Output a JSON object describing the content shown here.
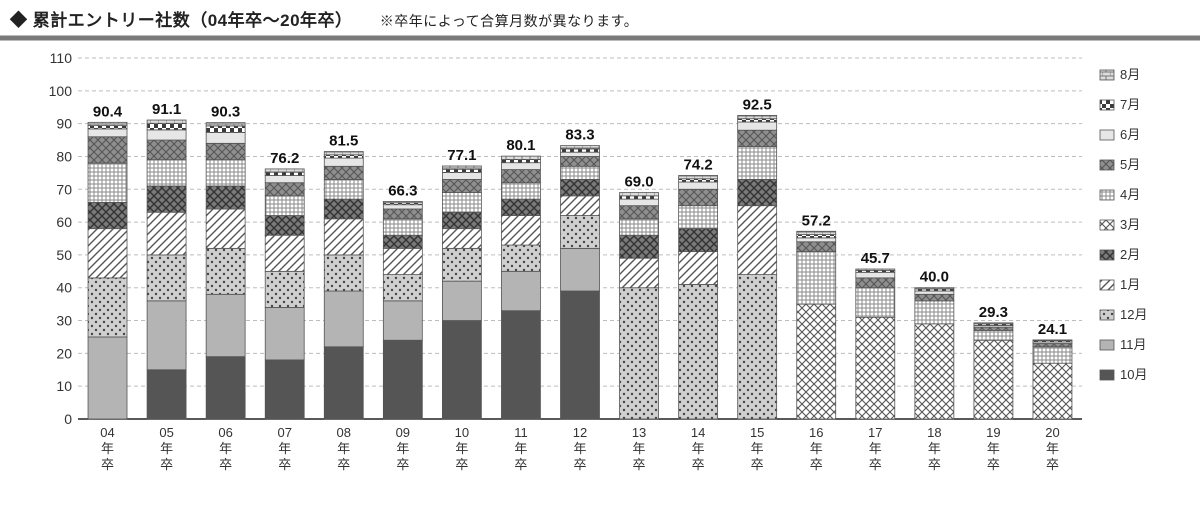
{
  "title": "◆ 累計エントリー社数（04年卒～20年卒）",
  "note": "※卒年によって合算月数が異なります。",
  "chart": {
    "type": "stacked-bar",
    "background_color": "#ffffff",
    "grid_color": "#bdbdbd",
    "axis_color": "#222222",
    "font_family": "Hiragino Kaku Gothic Pro, Meiryo, sans-serif",
    "title_fontsize": 17,
    "note_fontsize": 14,
    "axis_tick_fontsize": 14,
    "category_label_fontsize": 13,
    "data_label_fontsize": 15,
    "ylim": [
      0,
      110
    ],
    "ytick_step": 10,
    "bar_width_ratio": 0.66,
    "categories": [
      "04\n年\n卒",
      "05\n年\n卒",
      "06\n年\n卒",
      "07\n年\n卒",
      "08\n年\n卒",
      "09\n年\n卒",
      "10\n年\n卒",
      "11\n年\n卒",
      "12\n年\n卒",
      "13\n年\n卒",
      "14\n年\n卒",
      "15\n年\n卒",
      "16\n年\n卒",
      "17\n年\n卒",
      "18\n年\n卒",
      "19\n年\n卒",
      "20\n年\n卒"
    ],
    "totals": [
      90.4,
      91.1,
      90.3,
      76.2,
      81.5,
      66.3,
      77.1,
      80.1,
      83.3,
      69.0,
      74.2,
      92.5,
      57.2,
      45.7,
      40.0,
      29.3,
      24.1
    ],
    "legend_labels": [
      "8月",
      "7月",
      "6月",
      "5月",
      "4月",
      "3月",
      "2月",
      "1月",
      "12月",
      "11月",
      "10月"
    ],
    "legend_position": "right",
    "series_order_bottom_to_top": [
      "10月",
      "11月",
      "12月",
      "1月",
      "2月",
      "3月",
      "4月",
      "5月",
      "6月",
      "7月",
      "8月"
    ],
    "series_by_category": {
      "04年卒": {
        "10月": 0,
        "11月": 25,
        "12月": 18,
        "1月": 15,
        "2月": 8,
        "3月": 0,
        "4月": 12,
        "5月": 8,
        "6月": 2.4,
        "7月": 1,
        "8月": 1
      },
      "05年卒": {
        "10月": 15,
        "11月": 21,
        "12月": 14,
        "1月": 13,
        "2月": 8,
        "3月": 0,
        "4月": 8,
        "5月": 6,
        "6月": 3.1,
        "7月": 2,
        "8月": 1
      },
      "06年卒": {
        "10月": 19,
        "11月": 19,
        "12月": 14,
        "1月": 12,
        "2月": 7,
        "3月": 0,
        "4月": 8,
        "5月": 5,
        "6月": 3.3,
        "7月": 2,
        "8月": 1
      },
      "07年卒": {
        "10月": 18,
        "11月": 16,
        "12月": 11,
        "1月": 11,
        "2月": 6,
        "3月": 0,
        "4月": 6,
        "5月": 4,
        "6月": 2.2,
        "7月": 1,
        "8月": 1
      },
      "08年卒": {
        "10月": 22,
        "11月": 17,
        "12月": 11,
        "1月": 11,
        "2月": 6,
        "3月": 0,
        "4月": 6,
        "5月": 4,
        "6月": 2.5,
        "7月": 1,
        "8月": 1
      },
      "09年卒": {
        "10月": 24,
        "11月": 12,
        "12月": 8,
        "1月": 8,
        "2月": 4,
        "3月": 0,
        "4月": 5,
        "5月": 3,
        "6月": 1.3,
        "7月": 0.6,
        "8月": 0.4
      },
      "10年卒": {
        "10月": 30,
        "11月": 12,
        "12月": 10,
        "1月": 6,
        "2月": 5,
        "3月": 0,
        "4月": 6,
        "5月": 4,
        "6月": 2.1,
        "7月": 1,
        "8月": 1
      },
      "11年卒": {
        "10月": 33,
        "11月": 12,
        "12月": 8,
        "1月": 9,
        "2月": 5,
        "3月": 0,
        "4月": 5,
        "5月": 4,
        "6月": 2.1,
        "7月": 1,
        "8月": 1
      },
      "12年卒": {
        "10月": 39,
        "11月": 13,
        "12月": 10,
        "1月": 6,
        "2月": 5,
        "3月": 0,
        "4月": 4,
        "5月": 3,
        "6月": 1.3,
        "7月": 1,
        "8月": 1
      },
      "13年卒": {
        "10月": 0,
        "11月": 0,
        "12月": 40,
        "1月": 9,
        "2月": 7,
        "3月": 0,
        "4月": 5,
        "5月": 4,
        "6月": 2,
        "7月": 1,
        "8月": 1
      },
      "14年卒": {
        "10月": 0,
        "11月": 0,
        "12月": 41,
        "1月": 10,
        "2月": 7,
        "3月": 0,
        "4月": 7,
        "5月": 5,
        "6月": 2.2,
        "7月": 1,
        "8月": 1
      },
      "15年卒": {
        "10月": 0,
        "11月": 0,
        "12月": 44,
        "1月": 21,
        "2月": 8,
        "3月": 0,
        "4月": 10,
        "5月": 5,
        "6月": 2.5,
        "7月": 1,
        "8月": 1
      },
      "16年卒": {
        "10月": 0,
        "11月": 0,
        "12月": 0,
        "1月": 0,
        "2月": 0,
        "3月": 35,
        "4月": 16,
        "5月": 3,
        "6月": 1.2,
        "7月": 1,
        "8月": 1
      },
      "17年卒": {
        "10月": 0,
        "11月": 0,
        "12月": 0,
        "1月": 0,
        "2月": 0,
        "3月": 31,
        "4月": 9,
        "5月": 3,
        "6月": 1.7,
        "7月": 0.6,
        "8月": 0.4
      },
      "18年卒": {
        "10月": 0,
        "11月": 0,
        "12月": 0,
        "1月": 0,
        "2月": 0,
        "3月": 29,
        "4月": 7,
        "5月": 2,
        "6月": 1,
        "7月": 0.6,
        "8月": 0.4
      },
      "19年卒": {
        "10月": 0,
        "11月": 0,
        "12月": 0,
        "1月": 0,
        "2月": 0,
        "3月": 24,
        "4月": 3,
        "5月": 1,
        "6月": 0.5,
        "7月": 0.5,
        "8月": 0.3
      },
      "20年卒": {
        "10月": 0,
        "11月": 0,
        "12月": 0,
        "1月": 0,
        "2月": 0,
        "3月": 17,
        "4月": 5,
        "5月": 1,
        "6月": 0.5,
        "7月": 0.4,
        "8月": 0.2
      }
    },
    "series_styles": {
      "10月": {
        "fill": "#555555",
        "pattern": "solid"
      },
      "11月": {
        "fill": "#b4b4b4",
        "pattern": "solid"
      },
      "12月": {
        "fill": "#cfcfcf",
        "pattern": "dots"
      },
      "1月": {
        "fill": "#ffffff",
        "pattern": "diag"
      },
      "2月": {
        "fill": "#7a7a7a",
        "pattern": "weave"
      },
      "3月": {
        "fill": "#ffffff",
        "pattern": "cross"
      },
      "4月": {
        "fill": "#ffffff",
        "pattern": "grid"
      },
      "5月": {
        "fill": "#8f8f8f",
        "pattern": "cross"
      },
      "6月": {
        "fill": "#e6e6e6",
        "pattern": "solid"
      },
      "7月": {
        "fill": "#3b3b3b",
        "pattern": "checker"
      },
      "8月": {
        "fill": "#dcdcdc",
        "pattern": "brick"
      }
    }
  }
}
